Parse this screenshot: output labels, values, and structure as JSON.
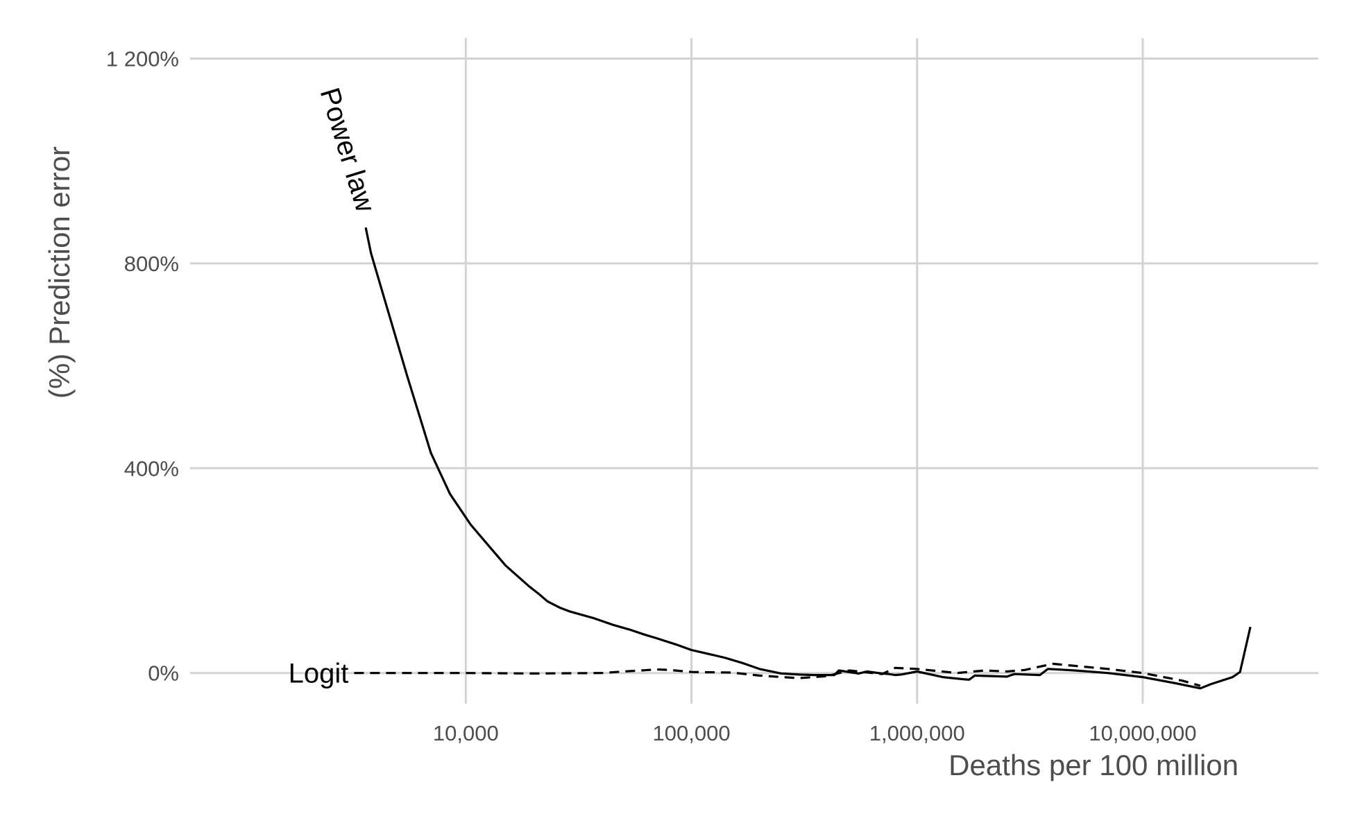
{
  "chart_data": {
    "type": "line",
    "xlabel": "Deaths per 100 million",
    "ylabel": "(%) Prediction error",
    "x_scale": "log",
    "xlim": [
      600,
      60000000
    ],
    "ylim": [
      -60,
      1240
    ],
    "grid": true,
    "x_ticks": [
      {
        "value": 10000,
        "label": "10,000"
      },
      {
        "value": 100000,
        "label": "100,000"
      },
      {
        "value": 1000000,
        "label": "1,000,000"
      },
      {
        "value": 10000000,
        "label": "10,000,000"
      }
    ],
    "x_minor_grid": [
      3162,
      31623,
      316228,
      3162278,
      31622777
    ],
    "y_ticks": [
      {
        "value": 0,
        "label": "0%"
      },
      {
        "value": 400,
        "label": "400%"
      },
      {
        "value": 800,
        "label": "800%"
      },
      {
        "value": 1200,
        "label": "1 200%"
      }
    ],
    "series": [
      {
        "name": "Power law",
        "line_style": "solid",
        "color": "#000000",
        "x": [
          3600,
          3800,
          4500,
          5500,
          7000,
          8500,
          10500,
          12000,
          15000,
          19000,
          21000,
          23000,
          26000,
          29000,
          33000,
          37000,
          41000,
          45000,
          53000,
          62000,
          70000,
          85000,
          100000,
          120000,
          140000,
          170000,
          200000,
          250000,
          300000,
          350000,
          430000,
          450000,
          550000,
          600000,
          700000,
          750000,
          800000,
          850000,
          1000000,
          1300000,
          1600000,
          1700000,
          1800000,
          2500000,
          2700000,
          3500000,
          3800000,
          5000000,
          7000000,
          10000000,
          14000000,
          18000000,
          20000000,
          25000000,
          27000000,
          30000000
        ],
        "values": [
          870,
          820,
          710,
          580,
          430,
          350,
          290,
          260,
          210,
          170,
          155,
          140,
          128,
          120,
          113,
          107,
          100,
          94,
          85,
          75,
          68,
          56,
          45,
          37,
          30,
          19,
          8,
          -1,
          -3,
          -4,
          -4,
          5,
          -1,
          3,
          -1,
          -2,
          -4,
          -3,
          3,
          -8,
          -12,
          -13,
          -5,
          -7,
          -2,
          -4,
          8,
          5,
          0,
          -8,
          -20,
          -30,
          -22,
          -8,
          2,
          90
        ]
      },
      {
        "name": "Logit",
        "line_style": "dashed",
        "color": "#000000",
        "x": [
          3200,
          4000,
          6000,
          10000,
          20000,
          40000,
          50000,
          60000,
          70000,
          80000,
          100000,
          150000,
          200000,
          300000,
          400000,
          500000,
          700000,
          800000,
          1000000,
          1500000,
          2000000,
          2500000,
          3000000,
          4000000,
          5000000,
          7000000,
          10000000,
          15000000,
          18000000
        ],
        "values": [
          0,
          0,
          0,
          0,
          -1,
          0,
          3,
          5,
          7,
          6,
          2,
          1,
          -5,
          -10,
          -6,
          5,
          -2,
          10,
          8,
          0,
          5,
          3,
          6,
          18,
          14,
          8,
          0,
          -15,
          -25
        ]
      }
    ]
  }
}
